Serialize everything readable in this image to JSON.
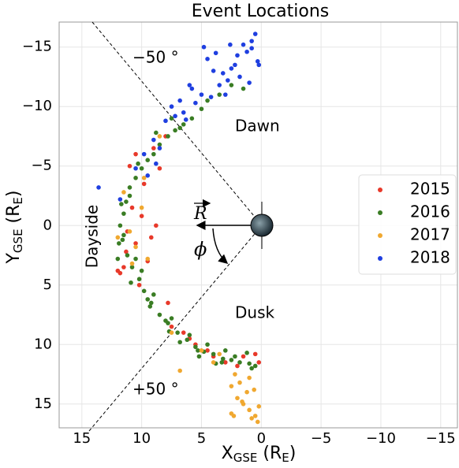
{
  "chart_data": {
    "type": "scatter",
    "title": "Event Locations",
    "xlabel": [
      "X",
      "GSE",
      " (R",
      "E",
      ")"
    ],
    "ylabel": [
      "Y",
      "GSE",
      " (R",
      "E",
      ")"
    ],
    "xlim": [
      16.9,
      -16.4
    ],
    "ylim": [
      -17.1,
      17.0
    ],
    "xticks": [
      15,
      10,
      5,
      0,
      {
        "value": -5,
        "label": "−5"
      },
      {
        "value": -10,
        "label": "−10"
      },
      {
        "value": -15,
        "label": "−15"
      }
    ],
    "yticks": [
      {
        "value": -15,
        "label": "−15"
      },
      {
        "value": -10,
        "label": "−10"
      },
      {
        "value": -5,
        "label": "−5"
      },
      0,
      5,
      10,
      15
    ],
    "grid": true,
    "legend": "right",
    "annotations": {
      "dawn": "Dawn",
      "dusk": "Dusk",
      "dayside": "Dayside",
      "angle_top": "−50 °",
      "angle_bottom": "+50 °",
      "r": "R",
      "phi": "ϕ"
    },
    "series": [
      {
        "name": "2015",
        "color": "#e8392a",
        "x": [
          10.8,
          11.2,
          10.5,
          10.0,
          9.5,
          11.5,
          11.8,
          10.2,
          9.8,
          11.0,
          10.5,
          8.0,
          7.5,
          6.5,
          6.0,
          5.5,
          4.5,
          4.0,
          3.0,
          2.0,
          1.5,
          0.5,
          0.2,
          7.8,
          8.5,
          9.0,
          11.3,
          9.2,
          8.8,
          12.0
        ],
        "y": [
          -1.5,
          0.5,
          1.5,
          -0.8,
          3.0,
          3.5,
          4.0,
          5.0,
          -3.5,
          -5.0,
          -6.0,
          -7.5,
          8.5,
          9.0,
          9.5,
          10.0,
          10.5,
          11.0,
          11.5,
          11.8,
          11.0,
          10.8,
          11.5,
          6.5,
          -4.8,
          -6.5,
          2.2,
          1.0,
          0.0,
          3.8
        ]
      },
      {
        "name": "2016",
        "color": "#3a7d24",
        "x": [
          1.5,
          2.5,
          3.5,
          4.5,
          5.0,
          5.8,
          6.5,
          7.2,
          7.8,
          8.5,
          9.0,
          9.5,
          10.0,
          10.5,
          11.0,
          11.3,
          11.5,
          11.8,
          11.6,
          11.2,
          10.8,
          10.2,
          9.8,
          9.2,
          8.5,
          7.8,
          7.0,
          6.2,
          5.5,
          4.8,
          4.0,
          3.2,
          2.5,
          1.8,
          1.0,
          0.5,
          3.0,
          4.5,
          6.0,
          7.5,
          9.0,
          10.5,
          11.0,
          11.9,
          12.0,
          11.5,
          10.0,
          9.5,
          8.0,
          6.8,
          5.2,
          3.8,
          2.2,
          1.2,
          0.8,
          6.8,
          7.5,
          8.8,
          10.3,
          11.7,
          10.9,
          9.3,
          7.7,
          5.3,
          3.3
        ],
        "y": [
          -11.5,
          -11.8,
          -11.0,
          -10.5,
          -9.8,
          -9.0,
          -8.5,
          -8.0,
          -7.5,
          -6.8,
          -6.0,
          -5.5,
          -4.8,
          -4.0,
          -3.2,
          -2.0,
          -1.0,
          0.0,
          1.2,
          2.5,
          3.5,
          4.5,
          5.5,
          6.5,
          7.5,
          8.2,
          9.0,
          9.6,
          10.2,
          10.6,
          10.8,
          11.2,
          11.3,
          11.5,
          11.6,
          11.8,
          10.5,
          10.0,
          9.2,
          7.8,
          5.8,
          2.8,
          -2.5,
          1.5,
          2.8,
          0.8,
          3.8,
          6.2,
          8.0,
          9.8,
          11.0,
          11.6,
          11.0,
          10.7,
          12.0,
          -8.2,
          -9.0,
          -7.8,
          -5.2,
          -1.8,
          4.8,
          6.8,
          8.9,
          10.5,
          11.5
        ]
      },
      {
        "name": "2017",
        "color": "#f0a830",
        "x": [
          2.5,
          2.0,
          1.5,
          1.0,
          0.5,
          0.3,
          2.2,
          1.8,
          1.2,
          0.8,
          0.2,
          2.5,
          1.6,
          0.6,
          1.0,
          2.3,
          11.0,
          10.5,
          10.0,
          9.5,
          11.5,
          9.8,
          4.0,
          3.5,
          6.8,
          8.5,
          12.0,
          10.8,
          7.5,
          5.0
        ],
        "y": [
          13.5,
          14.5,
          15.0,
          15.5,
          16.0,
          16.5,
          12.5,
          13.2,
          14.0,
          16.2,
          15.2,
          15.8,
          14.8,
          13.8,
          12.8,
          16.0,
          0.5,
          1.8,
          -1.5,
          2.8,
          -2.8,
          -4.0,
          11.5,
          10.8,
          12.2,
          -7.5,
          1.0,
          3.2,
          9.0,
          10.5
        ]
      },
      {
        "name": "2018",
        "color": "#1f3fe0",
        "x": [
          0.5,
          0.8,
          0.3,
          1.2,
          2.0,
          2.5,
          1.8,
          3.2,
          4.0,
          3.5,
          2.8,
          1.5,
          4.5,
          5.0,
          5.5,
          6.0,
          6.5,
          7.2,
          8.0,
          9.0,
          8.5,
          6.3,
          5.8,
          4.2,
          3.0,
          2.2,
          1.0,
          0.8,
          7.5,
          9.5,
          10.5,
          11.8,
          13.6,
          9.8,
          8.8,
          6.8,
          4.8,
          3.8,
          2.6,
          0.2
        ],
        "y": [
          -16.1,
          -15.5,
          -13.8,
          -14.6,
          -14.3,
          -13.2,
          -12.5,
          -12.8,
          -13.0,
          -11.8,
          -12.2,
          -15.2,
          -14.0,
          -11.0,
          -10.3,
          -11.8,
          -9.5,
          -9.2,
          -8.8,
          -7.2,
          -6.5,
          -8.9,
          -11.5,
          -10.8,
          -11.0,
          -13.5,
          -12.0,
          -14.9,
          -10.0,
          -4.2,
          -4.8,
          -2.2,
          -3.2,
          -6.0,
          -5.2,
          -10.5,
          -15.0,
          -14.5,
          -15.2,
          -13.5
        ]
      }
    ]
  }
}
